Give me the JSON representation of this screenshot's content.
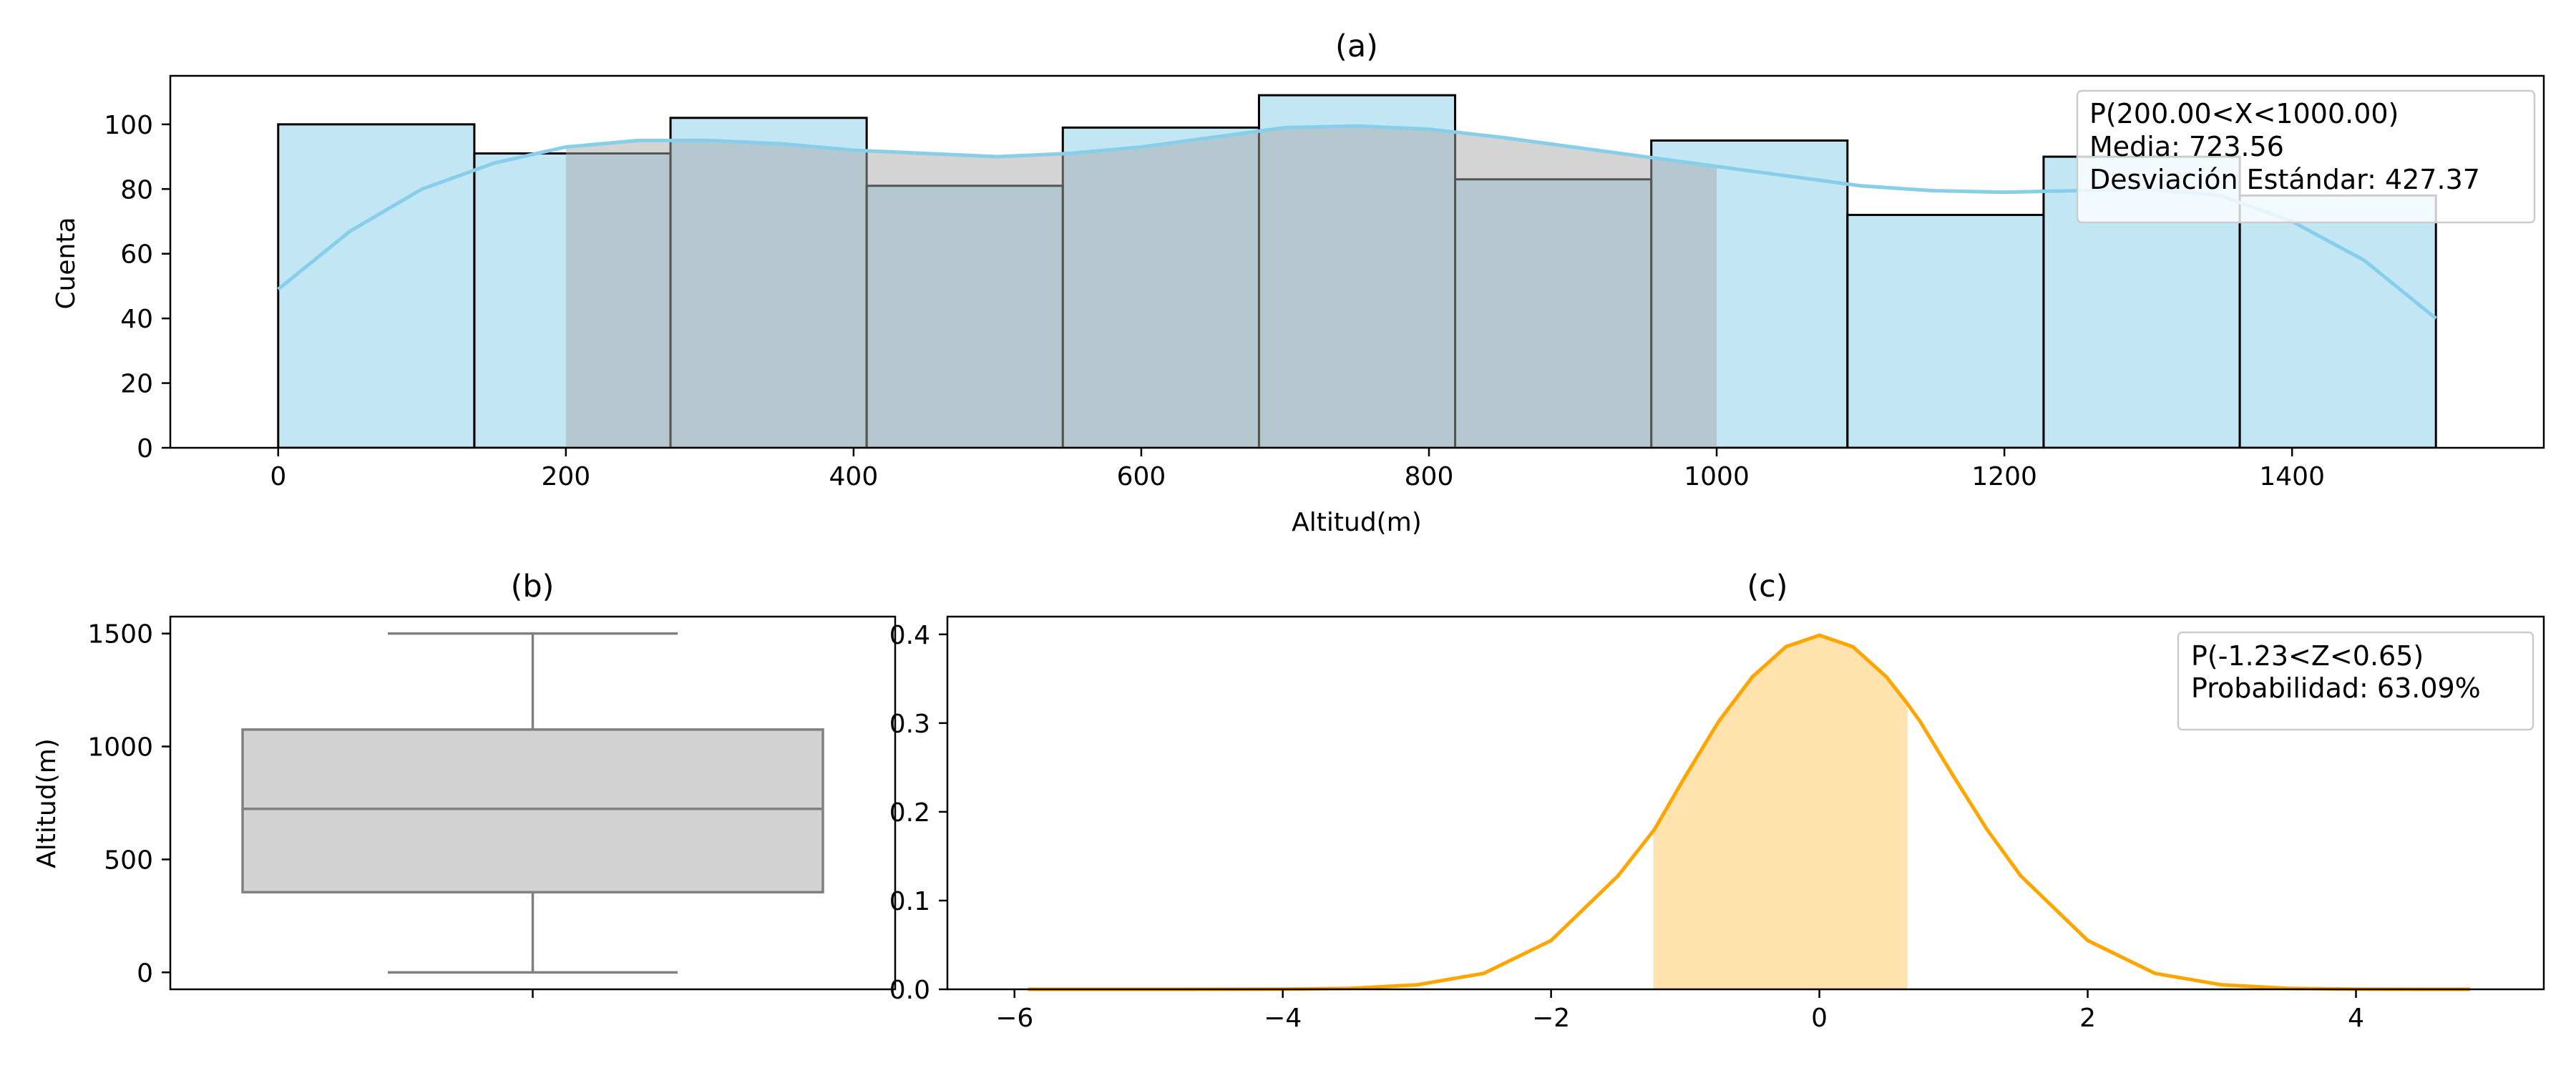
{
  "chart_data": [
    {
      "type": "bar",
      "subtype": "histogram-with-kde",
      "title": "(a)",
      "xlabel": "Altitud(m)",
      "ylabel": "Cuenta",
      "xlim": [
        -75,
        1575
      ],
      "ylim": [
        0,
        115
      ],
      "xticks": [
        0,
        200,
        400,
        600,
        800,
        1000,
        1200,
        1400
      ],
      "yticks": [
        0,
        20,
        40,
        60,
        80,
        100
      ],
      "bin_edges": [
        0,
        136.36,
        272.73,
        409.09,
        545.45,
        681.82,
        818.18,
        954.55,
        1090.91,
        1227.27,
        1363.64,
        1500
      ],
      "values": [
        100,
        91,
        102,
        81,
        99,
        109,
        83,
        95,
        72,
        90,
        78
      ],
      "kde": {
        "x": [
          0,
          50,
          100,
          150,
          200,
          250,
          300,
          350,
          400,
          450,
          500,
          550,
          600,
          650,
          700,
          750,
          800,
          850,
          900,
          950,
          1000,
          1050,
          1100,
          1150,
          1200,
          1250,
          1300,
          1350,
          1400,
          1450,
          1500
        ],
        "y": [
          49,
          67,
          80,
          88,
          93,
          95,
          95,
          94,
          92,
          91,
          90,
          91,
          93,
          96,
          99,
          99.5,
          98.5,
          96,
          93,
          90,
          87,
          84,
          81,
          79.5,
          79,
          79.5,
          80,
          78,
          70,
          58,
          40
        ]
      },
      "shaded_interval": [
        200,
        1000
      ],
      "legend_position": "upper right",
      "annotation_lines": [
        "P(200.00<X<1000.00)",
        "Media: 723.56",
        "Desviación Estándar: 427.37"
      ],
      "colors": {
        "bars": "#87ceeb",
        "kde": "#87ceeb",
        "shade": "#a9a9a9"
      }
    },
    {
      "type": "box",
      "title": "(b)",
      "ylabel": "Altitud(m)",
      "ylim": [
        -75,
        1575
      ],
      "yticks": [
        0,
        500,
        1000,
        1500
      ],
      "stats": {
        "min": 0,
        "q1": 355,
        "median": 724,
        "q3": 1075,
        "max": 1500
      },
      "colors": {
        "box": "#d3d3d3",
        "lines": "#808080"
      }
    },
    {
      "type": "area",
      "subtype": "kde-with-shaded-interval",
      "title": "(c)",
      "xlim": [
        -6.5,
        5.4
      ],
      "ylim": [
        0,
        0.42
      ],
      "xticks": [
        -6,
        -4,
        -2,
        0,
        2,
        4
      ],
      "xtick_labels": [
        "−6",
        "−4",
        "−2",
        "0",
        "2",
        "4"
      ],
      "yticks": [
        0,
        0.1,
        0.2,
        0.3,
        0.4
      ],
      "ytick_labels": [
        "0.0",
        "0.1",
        "0.2",
        "0.3",
        "0.4"
      ],
      "curve": {
        "x": [
          -5.9,
          -5.0,
          -4.0,
          -3.5,
          -3.0,
          -2.5,
          -2.0,
          -1.5,
          -1.23,
          -1.0,
          -0.75,
          -0.5,
          -0.25,
          0.0,
          0.25,
          0.5,
          0.65,
          0.75,
          1.0,
          1.25,
          1.5,
          2.0,
          2.5,
          3.0,
          3.5,
          4.0,
          4.5,
          4.85
        ],
        "y": [
          0.0,
          0.0,
          0.0002,
          0.001,
          0.005,
          0.018,
          0.055,
          0.128,
          0.18,
          0.24,
          0.302,
          0.352,
          0.386,
          0.399,
          0.386,
          0.352,
          0.323,
          0.302,
          0.24,
          0.18,
          0.128,
          0.055,
          0.018,
          0.005,
          0.001,
          0.0002,
          0.0,
          0.0
        ]
      },
      "shaded_interval": [
        -1.23,
        0.65
      ],
      "legend_position": "upper right",
      "annotation_lines": [
        "P(-1.23<Z<0.65)",
        "Probabilidad:  63.09%"
      ],
      "colors": {
        "curve": "#ffa500",
        "shade": "#ffe2ae"
      }
    }
  ]
}
